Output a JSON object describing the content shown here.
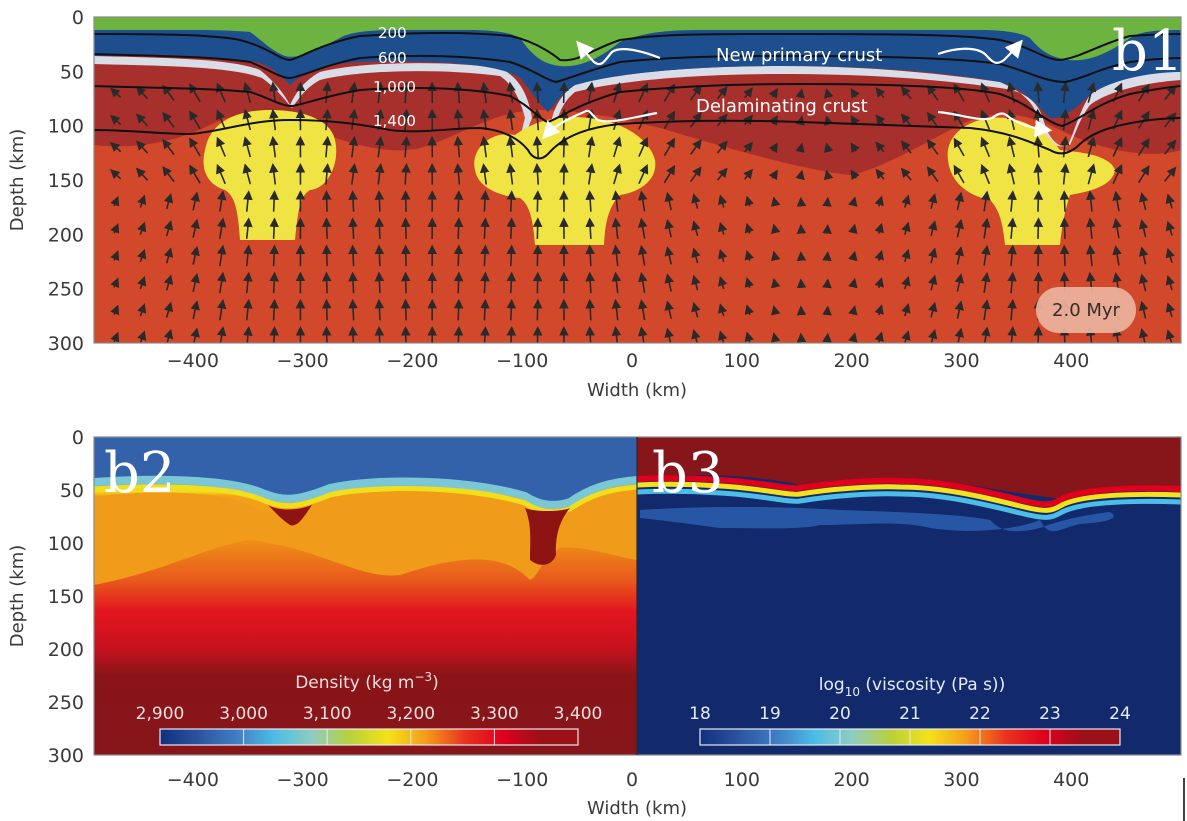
{
  "figure": {
    "panels": [
      {
        "id": "b1",
        "letter": "b1",
        "description": "Material field with velocity arrows and temperature contours",
        "colors": {
          "new_primary_crust": "#6cb33f",
          "crust": "#1d4f8f",
          "delaminating_layer": "#d8dde8",
          "lithosphere": "#a8302c",
          "asthenosphere": "#d2482a",
          "upwelling": "#f0e445",
          "contour": "#111111",
          "arrow": "#2a2a2a"
        },
        "contour_labels": [
          "200",
          "600",
          "1,000",
          "1,400"
        ],
        "annotations": {
          "new_primary_crust": "New primary crust",
          "delaminating_crust": "Delaminating crust"
        },
        "time_label": "2.0 Myr",
        "xlabel": "Width (km)",
        "ylabel": "Depth (km)",
        "x_ticks": [
          "−400",
          "−300",
          "−200",
          "−100",
          "0",
          "100",
          "200",
          "300",
          "400"
        ],
        "y_ticks": [
          "0",
          "50",
          "100",
          "150",
          "200",
          "250",
          "300"
        ]
      },
      {
        "id": "b2",
        "letter": "b2",
        "description": "Density field",
        "colorbar": {
          "title_main": "Density (kg m",
          "title_sup": "−3",
          "title_end": ")",
          "ticks": [
            "2,900",
            "3,000",
            "3,100",
            "3,200",
            "3,300",
            "3,400"
          ],
          "range": [
            2900,
            3400
          ],
          "colors": [
            "#10307e",
            "#2c53a0",
            "#3f7dc4",
            "#4cbde6",
            "#8fcdc0",
            "#b9d13a",
            "#f4e21a",
            "#f49b1b",
            "#e8341e",
            "#e0001e",
            "#9c1018"
          ]
        }
      },
      {
        "id": "b3",
        "letter": "b3",
        "description": "Viscosity field",
        "colorbar": {
          "title_main": "log",
          "title_sub": "10",
          "title_end": " (viscosity (Pa s))",
          "ticks": [
            "18",
            "19",
            "20",
            "21",
            "22",
            "23",
            "24"
          ],
          "range": [
            18,
            24
          ],
          "colors": [
            "#10307e",
            "#2c53a0",
            "#3f7dc4",
            "#4cbde6",
            "#8fcdc0",
            "#b9d13a",
            "#f4e21a",
            "#f49b1b",
            "#e8341e",
            "#e0001e",
            "#9c1018"
          ]
        }
      }
    ],
    "bottom_axes": {
      "xlabel": "Width (km)",
      "ylabel": "Depth (km)",
      "x_ticks": [
        "−400",
        "−300",
        "−200",
        "−100",
        "0",
        "100",
        "200",
        "300",
        "400"
      ],
      "y_ticks": [
        "0",
        "50",
        "100",
        "150",
        "200",
        "250",
        "300"
      ]
    }
  },
  "chart_data": [
    {
      "type": "heatmap",
      "title": "b1",
      "xlabel": "Width (km)",
      "ylabel": "Depth (km)",
      "xlim": [
        -490,
        500
      ],
      "ylim": [
        300,
        0
      ],
      "x_ticks": [
        -400,
        -300,
        -200,
        -100,
        0,
        100,
        200,
        300,
        400
      ],
      "y_ticks": [
        0,
        50,
        100,
        150,
        200,
        250,
        300
      ],
      "contours_degC": [
        200,
        600,
        1000,
        1400
      ],
      "annotations": [
        "New primary crust",
        "Delaminating crust",
        "2.0 Myr"
      ],
      "features": [
        {
          "name": "drip",
          "x_km": -310,
          "depth_km": 80
        },
        {
          "name": "drip",
          "x_km": -80,
          "depth_km": 125
        },
        {
          "name": "drip",
          "x_km": 390,
          "depth_km": 115
        },
        {
          "name": "upwelling",
          "x_km": -320,
          "depth_top_km": 110,
          "depth_bottom_km": 205
        },
        {
          "name": "upwelling",
          "x_km": -50,
          "depth_top_km": 120,
          "depth_bottom_km": 205
        },
        {
          "name": "upwelling",
          "x_km": 380,
          "depth_top_km": 120,
          "depth_bottom_km": 205
        }
      ]
    },
    {
      "type": "heatmap",
      "title": "b2",
      "xlabel": "Width (km)",
      "ylabel": "Depth (km)",
      "xlim": [
        -490,
        0
      ],
      "ylim": [
        300,
        0
      ],
      "colorbar_label": "Density (kg m−3)",
      "colorbar_range": [
        2900,
        3400
      ],
      "colorbar_ticks": [
        2900,
        3000,
        3100,
        3200,
        3300,
        3400
      ]
    },
    {
      "type": "heatmap",
      "title": "b3",
      "xlabel": "Width (km)",
      "ylabel": "Depth (km)",
      "xlim": [
        0,
        500
      ],
      "ylim": [
        300,
        0
      ],
      "colorbar_label": "log10 (viscosity (Pa s))",
      "colorbar_range": [
        18,
        24
      ],
      "colorbar_ticks": [
        18,
        19,
        20,
        21,
        22,
        23,
        24
      ]
    }
  ]
}
